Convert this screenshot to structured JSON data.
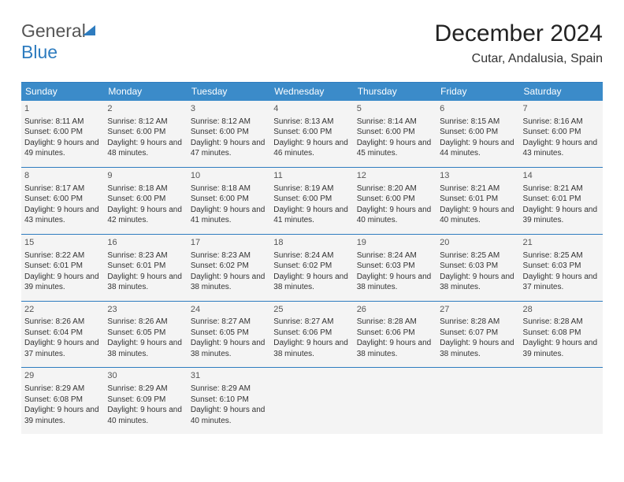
{
  "logo": {
    "part1": "General",
    "part2": "Blue"
  },
  "title": "December 2024",
  "location": "Cutar, Andalusia, Spain",
  "header_bg": "#3b8bc9",
  "header_fg": "#ffffff",
  "rule_color": "#2e7cbf",
  "cell_bg": "#f4f4f4",
  "days": [
    "Sunday",
    "Monday",
    "Tuesday",
    "Wednesday",
    "Thursday",
    "Friday",
    "Saturday"
  ],
  "weeks": [
    [
      {
        "n": "1",
        "sr": "Sunrise: 8:11 AM",
        "ss": "Sunset: 6:00 PM",
        "dl": "Daylight: 9 hours and 49 minutes."
      },
      {
        "n": "2",
        "sr": "Sunrise: 8:12 AM",
        "ss": "Sunset: 6:00 PM",
        "dl": "Daylight: 9 hours and 48 minutes."
      },
      {
        "n": "3",
        "sr": "Sunrise: 8:12 AM",
        "ss": "Sunset: 6:00 PM",
        "dl": "Daylight: 9 hours and 47 minutes."
      },
      {
        "n": "4",
        "sr": "Sunrise: 8:13 AM",
        "ss": "Sunset: 6:00 PM",
        "dl": "Daylight: 9 hours and 46 minutes."
      },
      {
        "n": "5",
        "sr": "Sunrise: 8:14 AM",
        "ss": "Sunset: 6:00 PM",
        "dl": "Daylight: 9 hours and 45 minutes."
      },
      {
        "n": "6",
        "sr": "Sunrise: 8:15 AM",
        "ss": "Sunset: 6:00 PM",
        "dl": "Daylight: 9 hours and 44 minutes."
      },
      {
        "n": "7",
        "sr": "Sunrise: 8:16 AM",
        "ss": "Sunset: 6:00 PM",
        "dl": "Daylight: 9 hours and 43 minutes."
      }
    ],
    [
      {
        "n": "8",
        "sr": "Sunrise: 8:17 AM",
        "ss": "Sunset: 6:00 PM",
        "dl": "Daylight: 9 hours and 43 minutes."
      },
      {
        "n": "9",
        "sr": "Sunrise: 8:18 AM",
        "ss": "Sunset: 6:00 PM",
        "dl": "Daylight: 9 hours and 42 minutes."
      },
      {
        "n": "10",
        "sr": "Sunrise: 8:18 AM",
        "ss": "Sunset: 6:00 PM",
        "dl": "Daylight: 9 hours and 41 minutes."
      },
      {
        "n": "11",
        "sr": "Sunrise: 8:19 AM",
        "ss": "Sunset: 6:00 PM",
        "dl": "Daylight: 9 hours and 41 minutes."
      },
      {
        "n": "12",
        "sr": "Sunrise: 8:20 AM",
        "ss": "Sunset: 6:00 PM",
        "dl": "Daylight: 9 hours and 40 minutes."
      },
      {
        "n": "13",
        "sr": "Sunrise: 8:21 AM",
        "ss": "Sunset: 6:01 PM",
        "dl": "Daylight: 9 hours and 40 minutes."
      },
      {
        "n": "14",
        "sr": "Sunrise: 8:21 AM",
        "ss": "Sunset: 6:01 PM",
        "dl": "Daylight: 9 hours and 39 minutes."
      }
    ],
    [
      {
        "n": "15",
        "sr": "Sunrise: 8:22 AM",
        "ss": "Sunset: 6:01 PM",
        "dl": "Daylight: 9 hours and 39 minutes."
      },
      {
        "n": "16",
        "sr": "Sunrise: 8:23 AM",
        "ss": "Sunset: 6:01 PM",
        "dl": "Daylight: 9 hours and 38 minutes."
      },
      {
        "n": "17",
        "sr": "Sunrise: 8:23 AM",
        "ss": "Sunset: 6:02 PM",
        "dl": "Daylight: 9 hours and 38 minutes."
      },
      {
        "n": "18",
        "sr": "Sunrise: 8:24 AM",
        "ss": "Sunset: 6:02 PM",
        "dl": "Daylight: 9 hours and 38 minutes."
      },
      {
        "n": "19",
        "sr": "Sunrise: 8:24 AM",
        "ss": "Sunset: 6:03 PM",
        "dl": "Daylight: 9 hours and 38 minutes."
      },
      {
        "n": "20",
        "sr": "Sunrise: 8:25 AM",
        "ss": "Sunset: 6:03 PM",
        "dl": "Daylight: 9 hours and 38 minutes."
      },
      {
        "n": "21",
        "sr": "Sunrise: 8:25 AM",
        "ss": "Sunset: 6:03 PM",
        "dl": "Daylight: 9 hours and 37 minutes."
      }
    ],
    [
      {
        "n": "22",
        "sr": "Sunrise: 8:26 AM",
        "ss": "Sunset: 6:04 PM",
        "dl": "Daylight: 9 hours and 37 minutes."
      },
      {
        "n": "23",
        "sr": "Sunrise: 8:26 AM",
        "ss": "Sunset: 6:05 PM",
        "dl": "Daylight: 9 hours and 38 minutes."
      },
      {
        "n": "24",
        "sr": "Sunrise: 8:27 AM",
        "ss": "Sunset: 6:05 PM",
        "dl": "Daylight: 9 hours and 38 minutes."
      },
      {
        "n": "25",
        "sr": "Sunrise: 8:27 AM",
        "ss": "Sunset: 6:06 PM",
        "dl": "Daylight: 9 hours and 38 minutes."
      },
      {
        "n": "26",
        "sr": "Sunrise: 8:28 AM",
        "ss": "Sunset: 6:06 PM",
        "dl": "Daylight: 9 hours and 38 minutes."
      },
      {
        "n": "27",
        "sr": "Sunrise: 8:28 AM",
        "ss": "Sunset: 6:07 PM",
        "dl": "Daylight: 9 hours and 38 minutes."
      },
      {
        "n": "28",
        "sr": "Sunrise: 8:28 AM",
        "ss": "Sunset: 6:08 PM",
        "dl": "Daylight: 9 hours and 39 minutes."
      }
    ],
    [
      {
        "n": "29",
        "sr": "Sunrise: 8:29 AM",
        "ss": "Sunset: 6:08 PM",
        "dl": "Daylight: 9 hours and 39 minutes."
      },
      {
        "n": "30",
        "sr": "Sunrise: 8:29 AM",
        "ss": "Sunset: 6:09 PM",
        "dl": "Daylight: 9 hours and 40 minutes."
      },
      {
        "n": "31",
        "sr": "Sunrise: 8:29 AM",
        "ss": "Sunset: 6:10 PM",
        "dl": "Daylight: 9 hours and 40 minutes."
      },
      null,
      null,
      null,
      null
    ]
  ]
}
